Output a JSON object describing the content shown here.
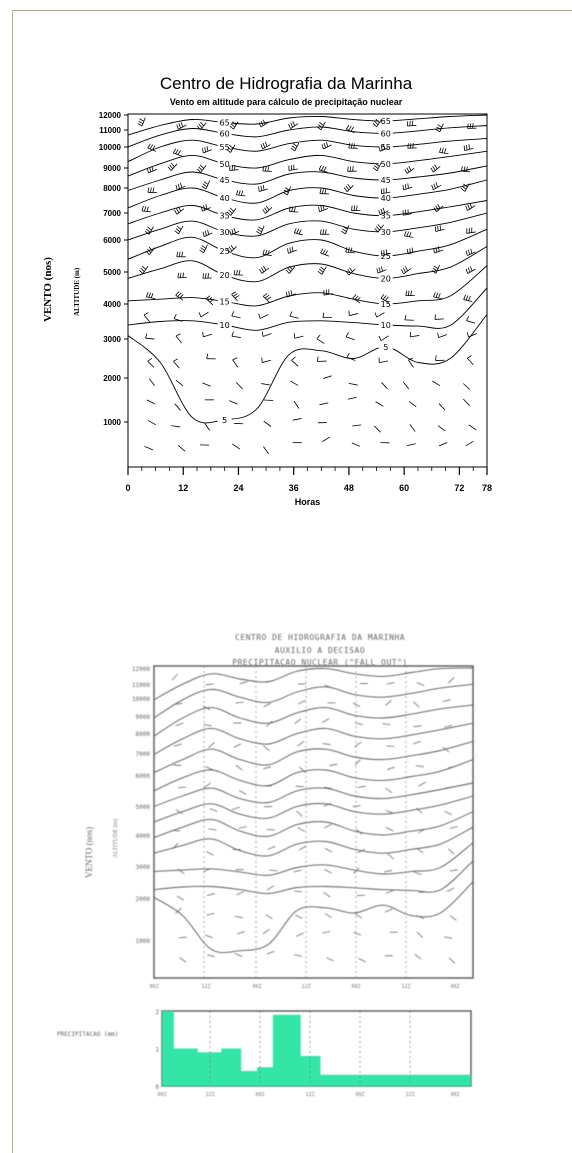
{
  "chart_data": [
    {
      "type": "line",
      "title": "Centro de Hidrografia da Marinha",
      "subtitle": "Vento em altitude para cálculo de precipitação nuclear",
      "ylabel": "VENTO (nos)",
      "ylabel2": "ALTITUDE (m)",
      "xlabel": "Horas",
      "xlim": [
        0,
        78
      ],
      "x_ticks": [
        "0",
        "12",
        "24",
        "36",
        "48",
        "60",
        "72",
        "78"
      ],
      "y_ticks": [
        "12000",
        "11000",
        "10000",
        "9000",
        "8000",
        "7000",
        "6000",
        "5000",
        "4000",
        "3000",
        "2000",
        "1000"
      ],
      "contour_labels": [
        "65",
        "60",
        "55",
        "50",
        "45",
        "40",
        "35",
        "30",
        "25",
        "20",
        "15",
        "10",
        "5"
      ],
      "series": [
        {
          "level": 5,
          "y": [
            3100,
            2400,
            1100,
            1050,
            1300,
            2600,
            2700,
            2500,
            2800,
            2400,
            2500,
            3700
          ]
        },
        {
          "level": 10,
          "y": [
            3400,
            3500,
            3520,
            3400,
            3250,
            3480,
            3520,
            3470,
            3400,
            3370,
            3390,
            4500
          ]
        },
        {
          "level": 15,
          "y": [
            4100,
            4150,
            4200,
            4080,
            3950,
            4250,
            4350,
            4150,
            4000,
            4100,
            4250,
            5200
          ]
        },
        {
          "level": 20,
          "y": [
            4800,
            5100,
            5350,
            4900,
            4700,
            5150,
            5250,
            4950,
            4800,
            4950,
            5150,
            5800
          ]
        },
        {
          "level": 25,
          "y": [
            5400,
            5800,
            6100,
            5650,
            5450,
            5900,
            6000,
            5650,
            5500,
            5650,
            5850,
            6400
          ]
        },
        {
          "level": 30,
          "y": [
            6000,
            6400,
            6700,
            6300,
            6150,
            6600,
            6700,
            6400,
            6300,
            6450,
            6650,
            7000
          ]
        },
        {
          "level": 35,
          "y": [
            6600,
            7000,
            7300,
            6900,
            6750,
            7200,
            7300,
            7000,
            6900,
            7050,
            7250,
            7500
          ]
        },
        {
          "level": 40,
          "y": [
            7200,
            7700,
            8000,
            7600,
            7400,
            7900,
            8000,
            7700,
            7600,
            7750,
            7950,
            8400
          ]
        },
        {
          "level": 45,
          "y": [
            7900,
            8400,
            8800,
            8400,
            8200,
            8700,
            8800,
            8500,
            8400,
            8550,
            8750,
            9100
          ]
        },
        {
          "level": 50,
          "y": [
            8600,
            9200,
            9600,
            9200,
            9000,
            9400,
            9600,
            9300,
            9200,
            9350,
            9550,
            9800
          ]
        },
        {
          "level": 55,
          "y": [
            9300,
            10000,
            10400,
            10000,
            9800,
            10200,
            10400,
            10100,
            10000,
            10150,
            10350,
            10500
          ]
        },
        {
          "level": 60,
          "y": [
            10000,
            10700,
            11100,
            10800,
            10600,
            11000,
            11200,
            10900,
            10800,
            10950,
            11150,
            11300
          ]
        },
        {
          "level": 65,
          "y": [
            10700,
            11300,
            11700,
            11500,
            11400,
            11800,
            11900,
            11700,
            11600,
            11750,
            11900,
            12000
          ]
        }
      ],
      "x": [
        0,
        7,
        14,
        21,
        28,
        35,
        42,
        49,
        56,
        63,
        70,
        78
      ]
    },
    {
      "type": "line",
      "title_lines": [
        "CENTRO DE HIDROGRAFIA DA MARINHA",
        "AUXILIO A DECISAO",
        "PRECIPITACAO NUCLEAR (\"FALL OUT\")"
      ],
      "ylabel": "VENTO (nos)",
      "ylabel2": "ALTITUDE (m)",
      "y_ticks": [
        "12000",
        "11000",
        "10000",
        "9000",
        "8000",
        "7000",
        "6000",
        "5000",
        "4000",
        "3000",
        "2000",
        "1000"
      ],
      "x_ticks": [
        "00Z",
        "12Z",
        "00Z",
        "12Z",
        "00Z",
        "12Z",
        "00Z"
      ],
      "xlim": [
        0,
        78
      ]
    },
    {
      "type": "area",
      "ylabel": "PRECIPITACAO (mm)",
      "x": [
        0,
        3,
        3,
        9,
        9,
        15,
        15,
        20,
        20,
        24,
        24,
        28,
        28,
        35,
        35,
        40,
        40,
        48,
        48,
        78
      ],
      "y": [
        2.0,
        2.0,
        1.0,
        1.0,
        0.9,
        0.9,
        1.0,
        1.0,
        0.4,
        0.4,
        0.5,
        0.5,
        1.9,
        1.9,
        0.8,
        0.8,
        0.3,
        0.3,
        0.3,
        0.3
      ],
      "ylim": [
        0,
        2
      ],
      "y_ticks": [
        "2",
        "1",
        "0"
      ],
      "fill_color": "#33e6a8"
    }
  ]
}
